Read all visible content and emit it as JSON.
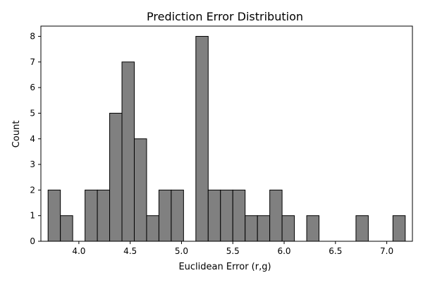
{
  "chart_data": {
    "type": "bar",
    "title": "Prediction Error Distribution",
    "xlabel": "Euclidean Error (r,g)",
    "ylabel": "Count",
    "xlim": [
      3.63,
      7.25
    ],
    "ylim": [
      0,
      8.4
    ],
    "x_ticks": [
      4.0,
      4.5,
      5.0,
      5.5,
      6.0,
      6.5,
      7.0
    ],
    "x_tick_labels": [
      "4.0",
      "4.5",
      "5.0",
      "5.5",
      "6.0",
      "6.5",
      "7.0"
    ],
    "y_ticks": [
      0,
      1,
      2,
      3,
      4,
      5,
      6,
      7,
      8
    ],
    "y_tick_labels": [
      "0",
      "1",
      "2",
      "3",
      "4",
      "5",
      "6",
      "7",
      "8"
    ],
    "bins": [
      {
        "x0": 3.7,
        "x1": 3.82,
        "count": 2
      },
      {
        "x0": 3.82,
        "x1": 3.94,
        "count": 1
      },
      {
        "x0": 3.94,
        "x1": 4.06,
        "count": 0
      },
      {
        "x0": 4.06,
        "x1": 4.18,
        "count": 2
      },
      {
        "x0": 4.18,
        "x1": 4.3,
        "count": 2
      },
      {
        "x0": 4.3,
        "x1": 4.42,
        "count": 5
      },
      {
        "x0": 4.42,
        "x1": 4.54,
        "count": 7
      },
      {
        "x0": 4.54,
        "x1": 4.66,
        "count": 4
      },
      {
        "x0": 4.66,
        "x1": 4.78,
        "count": 1
      },
      {
        "x0": 4.78,
        "x1": 4.9,
        "count": 2
      },
      {
        "x0": 4.9,
        "x1": 5.02,
        "count": 2
      },
      {
        "x0": 5.02,
        "x1": 5.14,
        "count": 0
      },
      {
        "x0": 5.14,
        "x1": 5.26,
        "count": 8
      },
      {
        "x0": 5.26,
        "x1": 5.38,
        "count": 2
      },
      {
        "x0": 5.38,
        "x1": 5.5,
        "count": 2
      },
      {
        "x0": 5.5,
        "x1": 5.62,
        "count": 2
      },
      {
        "x0": 5.62,
        "x1": 5.74,
        "count": 1
      },
      {
        "x0": 5.74,
        "x1": 5.86,
        "count": 1
      },
      {
        "x0": 5.86,
        "x1": 5.98,
        "count": 2
      },
      {
        "x0": 5.98,
        "x1": 6.1,
        "count": 1
      },
      {
        "x0": 6.1,
        "x1": 6.22,
        "count": 0
      },
      {
        "x0": 6.22,
        "x1": 6.34,
        "count": 1
      },
      {
        "x0": 6.34,
        "x1": 6.46,
        "count": 0
      },
      {
        "x0": 6.46,
        "x1": 6.58,
        "count": 0
      },
      {
        "x0": 6.58,
        "x1": 6.7,
        "count": 0
      },
      {
        "x0": 6.7,
        "x1": 6.82,
        "count": 1
      },
      {
        "x0": 6.82,
        "x1": 6.94,
        "count": 0
      },
      {
        "x0": 6.94,
        "x1": 7.06,
        "count": 0
      },
      {
        "x0": 7.06,
        "x1": 7.18,
        "count": 1
      }
    ],
    "bar_color": "#808080",
    "edge_color": "#000000",
    "grid": false
  }
}
